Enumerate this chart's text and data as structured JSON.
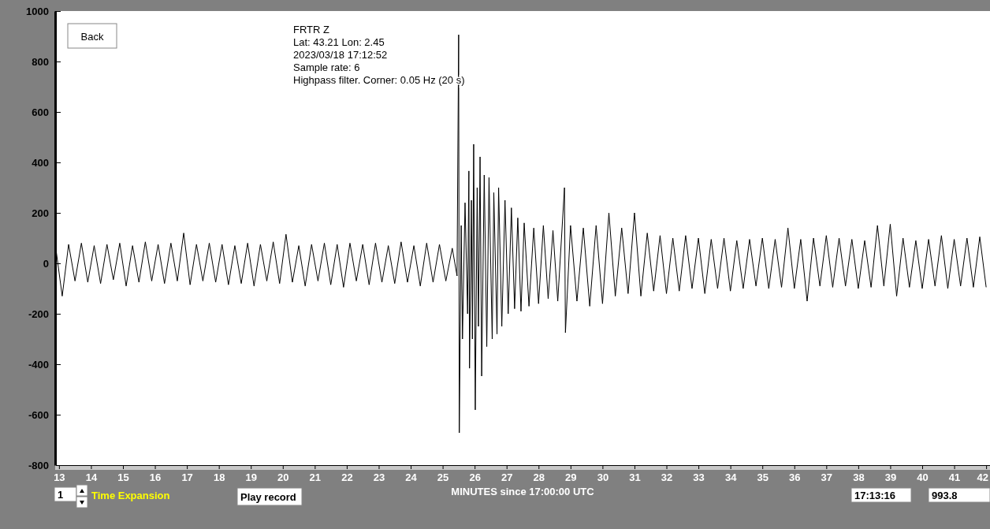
{
  "chart_data": {
    "type": "line",
    "title": "FRTR  Z",
    "xlabel": "MINUTES since 17:00:00 UTC",
    "annotations": [
      "Lat: 43.21 Lon: 2.45",
      "2023/03/18 17:12:52",
      "Sample rate: 6",
      "Highpass filter. Corner: 0.05 Hz (20 s)",
      "Back",
      "1",
      "Time Expansion",
      "Play record",
      "17:13:16",
      "993.8"
    ],
    "xlim": [
      12.88,
      42.12
    ],
    "xticks": [
      13,
      14,
      15,
      16,
      17,
      18,
      19,
      20,
      21,
      22,
      23,
      24,
      25,
      26,
      27,
      28,
      29,
      30,
      31,
      32,
      33,
      34,
      35,
      36,
      37,
      38,
      39,
      40,
      41,
      42
    ],
    "ylim": [
      -800,
      1000
    ],
    "yticks": [
      -800,
      -600,
      -400,
      -200,
      0,
      200,
      400,
      600,
      800,
      1000
    ],
    "grid": false,
    "marker": "none",
    "line_style": "solid",
    "series": [
      {
        "color": "#000000",
        "x": [
          12.9,
          13.1,
          13.3,
          13.5,
          13.7,
          13.9,
          14.1,
          14.3,
          14.5,
          14.7,
          14.9,
          15.1,
          15.3,
          15.5,
          15.7,
          15.9,
          16.1,
          16.3,
          16.5,
          16.7,
          16.9,
          17.1,
          17.3,
          17.5,
          17.7,
          17.9,
          18.1,
          18.3,
          18.5,
          18.7,
          18.9,
          19.1,
          19.3,
          19.5,
          19.7,
          19.9,
          20.1,
          20.3,
          20.5,
          20.7,
          20.9,
          21.1,
          21.3,
          21.5,
          21.7,
          21.9,
          22.1,
          22.3,
          22.5,
          22.7,
          22.9,
          23.1,
          23.3,
          23.5,
          23.7,
          23.9,
          24.1,
          24.3,
          24.5,
          24.7,
          24.9,
          25.1,
          25.3,
          25.45,
          25.5,
          25.52,
          25.58,
          25.62,
          25.7,
          25.78,
          25.82,
          25.84,
          25.9,
          25.93,
          25.97,
          26.02,
          26.08,
          26.12,
          26.17,
          26.22,
          26.3,
          26.38,
          26.45,
          26.55,
          26.6,
          26.7,
          26.75,
          26.85,
          26.95,
          27.05,
          27.15,
          27.25,
          27.35,
          27.45,
          27.55,
          27.7,
          27.85,
          28.0,
          28.15,
          28.3,
          28.45,
          28.6,
          28.81,
          28.84,
          29.0,
          29.2,
          29.4,
          29.6,
          29.8,
          30.0,
          30.2,
          30.4,
          30.6,
          30.8,
          31.0,
          31.2,
          31.4,
          31.6,
          31.8,
          32.0,
          32.2,
          32.4,
          32.6,
          32.8,
          33.0,
          33.2,
          33.4,
          33.6,
          33.8,
          34.0,
          34.2,
          34.4,
          34.6,
          34.8,
          35.0,
          35.2,
          35.4,
          35.6,
          35.8,
          36.0,
          36.2,
          36.4,
          36.6,
          36.8,
          37.0,
          37.2,
          37.4,
          37.6,
          37.8,
          38.0,
          38.2,
          38.4,
          38.6,
          38.8,
          39.0,
          39.2,
          39.4,
          39.6,
          39.8,
          40.0,
          40.2,
          40.4,
          40.6,
          40.8,
          41.0,
          41.2,
          41.4,
          41.6,
          41.8,
          42.0
        ],
        "values": [
          60,
          -130,
          75,
          -70,
          80,
          -75,
          70,
          -80,
          75,
          -65,
          80,
          -90,
          70,
          -75,
          85,
          -70,
          75,
          -80,
          80,
          -70,
          120,
          -85,
          75,
          -70,
          80,
          -75,
          75,
          -85,
          70,
          -80,
          80,
          -90,
          75,
          -70,
          85,
          -80,
          115,
          -75,
          70,
          -90,
          75,
          -70,
          80,
          -85,
          75,
          -95,
          80,
          -70,
          75,
          -85,
          80,
          -75,
          70,
          -80,
          85,
          -75,
          70,
          -90,
          80,
          -75,
          75,
          -70,
          60,
          -50,
          906,
          -672,
          150,
          -300,
          240,
          -200,
          366,
          -416,
          250,
          -300,
          472,
          -581,
          300,
          -250,
          422,
          -447,
          350,
          -330,
          340,
          -300,
          280,
          -280,
          300,
          -250,
          250,
          -200,
          220,
          -180,
          180,
          -190,
          160,
          -170,
          140,
          -160,
          150,
          -140,
          130,
          -150,
          300,
          -275,
          150,
          -150,
          140,
          -170,
          150,
          -160,
          200,
          -130,
          140,
          -120,
          200,
          -130,
          120,
          -110,
          110,
          -120,
          100,
          -110,
          110,
          -100,
          100,
          -120,
          95,
          -100,
          100,
          -110,
          90,
          -100,
          95,
          -90,
          100,
          -100,
          95,
          -95,
          140,
          -100,
          95,
          -150,
          100,
          -90,
          110,
          -95,
          100,
          -90,
          95,
          -100,
          90,
          -95,
          150,
          -90,
          155,
          -130,
          100,
          -95,
          90,
          -100,
          95,
          -90,
          110,
          -100,
          95,
          -90,
          100,
          -95,
          105,
          -95
        ]
      }
    ]
  }
}
